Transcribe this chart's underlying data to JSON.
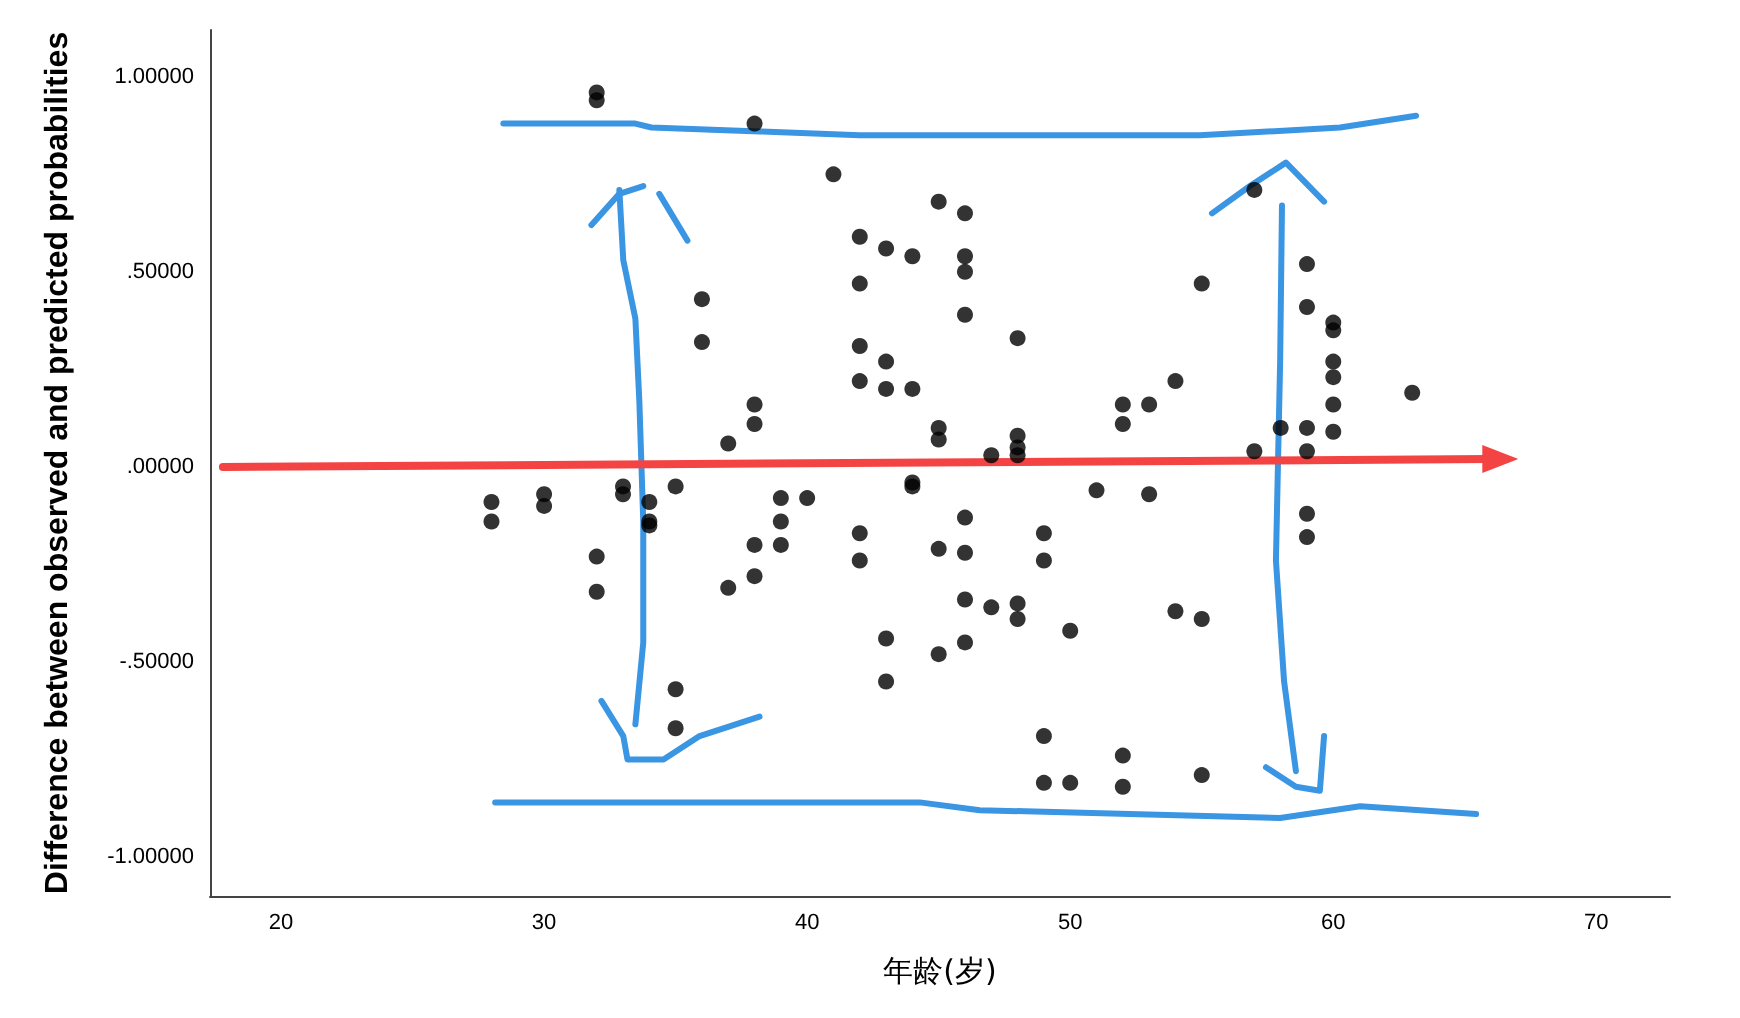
{
  "chart_data": {
    "type": "scatter",
    "xlabel": "年龄(岁)",
    "ylabel": "Difference between observed and predicted probabilities",
    "x": [
      28,
      28,
      30,
      30,
      32,
      32,
      32,
      32,
      33,
      33,
      34,
      34,
      34,
      35,
      35,
      35,
      36,
      36,
      37,
      37,
      38,
      38,
      38,
      38,
      38,
      39,
      39,
      39,
      40,
      41,
      42,
      42,
      42,
      42,
      42,
      42,
      43,
      43,
      43,
      43,
      43,
      44,
      44,
      44,
      44,
      45,
      45,
      45,
      45,
      45,
      46,
      46,
      46,
      46,
      46,
      46,
      46,
      46,
      47,
      47,
      48,
      48,
      48,
      48,
      48,
      48,
      49,
      49,
      49,
      49,
      50,
      50,
      51,
      52,
      52,
      52,
      52,
      53,
      53,
      54,
      54,
      55,
      55,
      55,
      57,
      57,
      58,
      59,
      59,
      59,
      59,
      59,
      59,
      60,
      60,
      60,
      60,
      60,
      60,
      63
    ],
    "values": [
      -0.09,
      -0.14,
      -0.07,
      -0.1,
      0.96,
      0.94,
      -0.23,
      -0.32,
      -0.05,
      -0.07,
      -0.09,
      -0.14,
      -0.15,
      -0.05,
      -0.57,
      -0.67,
      0.43,
      0.32,
      0.06,
      -0.31,
      0.88,
      0.16,
      0.11,
      -0.2,
      -0.28,
      -0.08,
      -0.14,
      -0.2,
      -0.08,
      0.75,
      0.59,
      0.47,
      0.31,
      0.22,
      -0.17,
      -0.24,
      0.56,
      0.27,
      0.2,
      -0.44,
      -0.55,
      0.54,
      0.2,
      -0.04,
      -0.05,
      0.68,
      0.1,
      0.07,
      -0.21,
      -0.48,
      0.65,
      0.54,
      0.5,
      0.39,
      -0.13,
      -0.22,
      -0.34,
      -0.45,
      0.03,
      -0.36,
      0.33,
      0.08,
      0.05,
      0.03,
      -0.35,
      -0.39,
      -0.17,
      -0.24,
      -0.69,
      -0.81,
      -0.42,
      -0.81,
      -0.06,
      0.16,
      0.11,
      -0.74,
      -0.82,
      0.16,
      -0.07,
      0.22,
      -0.37,
      0.47,
      -0.39,
      -0.79,
      0.71,
      0.04,
      0.1,
      0.52,
      0.41,
      0.1,
      0.04,
      -0.12,
      -0.18,
      0.37,
      0.35,
      0.27,
      0.23,
      0.16,
      0.09,
      0.19
    ],
    "color": "#000000",
    "marker": "circle",
    "series": [
      {
        "type": "line",
        "color": "#3a95e3",
        "marker": "none",
        "x": [
          28.45,
          33.47,
          34.08,
          38.19,
          41.99,
          54.93,
          60.26,
          63.15
        ],
        "values": [
          0.88,
          0.88,
          0.87,
          0.86,
          0.85,
          0.85,
          0.87,
          0.9
        ]
      },
      {
        "type": "line",
        "color": "#3a95e3",
        "marker": "none",
        "x": [
          28.14,
          44.28,
          46.56,
          57.98,
          61.02,
          65.43
        ],
        "values": [
          -0.86,
          -0.86,
          -0.88,
          -0.9,
          -0.87,
          -0.89
        ]
      },
      {
        "type": "line",
        "color": "#3a95e3",
        "marker": "none",
        "x": [
          32.86,
          33.01,
          33.47,
          33.62,
          33.77,
          33.77,
          33.47
        ],
        "values": [
          0.71,
          0.53,
          0.38,
          0.17,
          -0.14,
          -0.45,
          -0.66
        ]
      },
      {
        "type": "line",
        "color": "#3a95e3",
        "marker": "none",
        "x": [
          31.8,
          32.86,
          33.77
        ],
        "values": [
          0.62,
          0.7,
          0.72
        ]
      },
      {
        "type": "line",
        "color": "#3a95e3",
        "marker": "none",
        "x": [
          34.38,
          35.45
        ],
        "values": [
          0.7,
          0.58
        ]
      },
      {
        "type": "line",
        "color": "#3a95e3",
        "marker": "none",
        "x": [
          32.18,
          33.01,
          33.17,
          34.54,
          35.91,
          38.19
        ],
        "values": [
          -0.6,
          -0.69,
          -0.75,
          -0.75,
          -0.69,
          -0.64
        ]
      },
      {
        "type": "line",
        "color": "#3a95e3",
        "marker": "none",
        "x": [
          58.05,
          57.98,
          57.82,
          58.13,
          58.58
        ],
        "values": [
          0.67,
          0.27,
          -0.24,
          -0.55,
          -0.78
        ]
      },
      {
        "type": "line",
        "color": "#3a95e3",
        "marker": "none",
        "x": [
          55.39,
          56.83,
          58.2,
          59.65
        ],
        "values": [
          0.65,
          0.72,
          0.78,
          0.68
        ]
      },
      {
        "type": "line",
        "color": "#3a95e3",
        "marker": "none",
        "x": [
          57.44,
          58.58,
          59.49,
          59.65
        ],
        "values": [
          -0.77,
          -0.82,
          -0.83,
          -0.69
        ]
      },
      {
        "type": "line",
        "color": "#f44343",
        "marker": "triangle",
        "x": [
          17.79,
          65.97
        ],
        "values": [
          0,
          0.02
        ]
      }
    ],
    "xlim": [
      17.3,
      72.8
    ],
    "xticks": [
      20,
      30,
      40,
      50,
      60,
      70
    ],
    "ylim": [
      -1.1,
      1.12
    ],
    "yticks": [
      {
        "value": 1,
        "label": "1.00000"
      },
      {
        "value": 0.5,
        "label": ".50000"
      },
      {
        "value": 0,
        "label": ".00000"
      },
      {
        "value": -0.5,
        "label": "-.50000"
      },
      {
        "value": -1,
        "label": "-1.00000"
      }
    ],
    "grid": false
  }
}
